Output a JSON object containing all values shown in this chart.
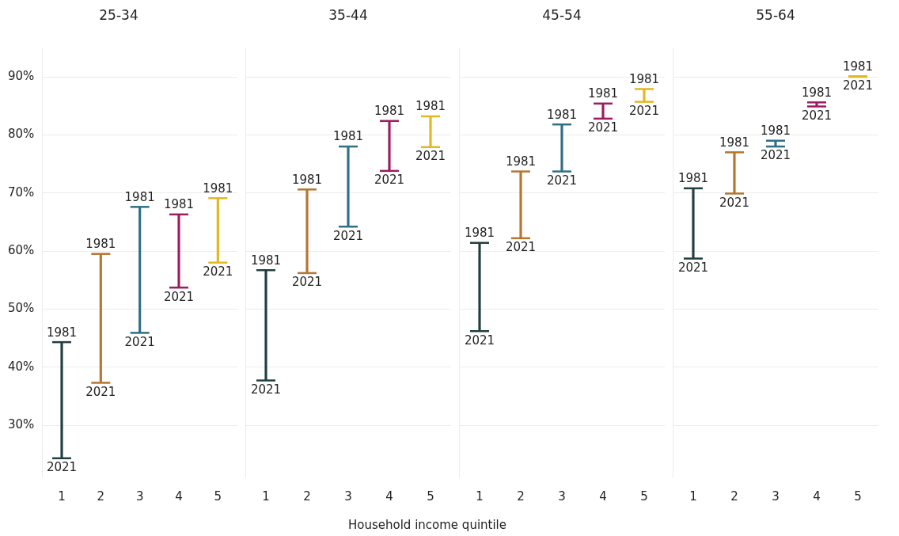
{
  "chart_data": [
    {
      "type": "bar",
      "title": "25-34",
      "categories": [
        "1",
        "2",
        "3",
        "4",
        "5"
      ],
      "base": [
        24.3,
        37.3,
        45.9,
        53.7,
        58.0
      ],
      "values": [
        20.0,
        22.2,
        21.7,
        12.6,
        11.1
      ],
      "colors": [
        "#213e42",
        "#b5762f",
        "#2e6f84",
        "#9b1d63",
        "#e3b81f"
      ],
      "ylim": [
        21,
        95
      ],
      "yticks": [
        {
          "value": 30,
          "label": "30%"
        },
        {
          "value": 40,
          "label": "40%"
        },
        {
          "value": 50,
          "label": "50%"
        },
        {
          "value": 60,
          "label": "60%"
        },
        {
          "value": 70,
          "label": "70%"
        },
        {
          "value": 80,
          "label": "80%"
        },
        {
          "value": 90,
          "label": "90%"
        }
      ],
      "grid": "y",
      "legend": false,
      "annotations": [
        {
          "text": "1981",
          "x": "1",
          "y": 44.3
        },
        {
          "text": "2021",
          "x": "1",
          "y": 24.3
        },
        {
          "text": "1981",
          "x": "2",
          "y": 59.5
        },
        {
          "text": "2021",
          "x": "2",
          "y": 37.3
        },
        {
          "text": "1981",
          "x": "3",
          "y": 67.6
        },
        {
          "text": "2021",
          "x": "3",
          "y": 45.9
        },
        {
          "text": "1981",
          "x": "4",
          "y": 66.3
        },
        {
          "text": "2021",
          "x": "4",
          "y": 53.7
        },
        {
          "text": "1981",
          "x": "5",
          "y": 69.1
        },
        {
          "text": "2021",
          "x": "5",
          "y": 58.0
        }
      ]
    },
    {
      "type": "bar",
      "title": "35-44",
      "xlabel": "Household income quintile",
      "categories": [
        "1",
        "2",
        "3",
        "4",
        "5"
      ],
      "base": [
        37.7,
        56.2,
        64.2,
        73.8,
        77.9
      ],
      "values": [
        19.0,
        14.4,
        13.8,
        8.6,
        5.3
      ],
      "colors": [
        "#213e42",
        "#b5762f",
        "#2e6f84",
        "#9b1d63",
        "#e3b81f"
      ],
      "ylim": [
        21,
        95
      ],
      "yticks": [
        30,
        40,
        50,
        60,
        70,
        80,
        90
      ],
      "grid": "y",
      "legend": false,
      "tick_labels": "x",
      "annotations": [
        {
          "text": "1981",
          "x": "1",
          "y": 56.7
        },
        {
          "text": "2021",
          "x": "1",
          "y": 37.7
        },
        {
          "text": "1981",
          "x": "2",
          "y": 70.6
        },
        {
          "text": "2021",
          "x": "2",
          "y": 56.2
        },
        {
          "text": "1981",
          "x": "3",
          "y": 78.0
        },
        {
          "text": "2021",
          "x": "3",
          "y": 64.2
        },
        {
          "text": "1981",
          "x": "4",
          "y": 82.4
        },
        {
          "text": "2021",
          "x": "4",
          "y": 73.8
        },
        {
          "text": "1981",
          "x": "5",
          "y": 83.2
        },
        {
          "text": "2021",
          "x": "5",
          "y": 77.9
        }
      ]
    },
    {
      "type": "bar",
      "title": "45-54",
      "categories": [
        "1",
        "2",
        "3",
        "4",
        "5"
      ],
      "base": [
        46.2,
        62.2,
        73.7,
        82.8,
        85.7
      ],
      "values": [
        15.2,
        11.5,
        8.1,
        2.6,
        2.2
      ],
      "colors": [
        "#213e42",
        "#b5762f",
        "#2e6f84",
        "#9b1d63",
        "#e3b81f"
      ],
      "ylim": [
        21,
        95
      ],
      "yticks": [
        30,
        40,
        50,
        60,
        70,
        80,
        90
      ],
      "grid": "y",
      "legend": false,
      "tick_labels": "x",
      "annotations": [
        {
          "text": "1981",
          "x": "1",
          "y": 61.4
        },
        {
          "text": "2021",
          "x": "1",
          "y": 46.2
        },
        {
          "text": "1981",
          "x": "2",
          "y": 73.7
        },
        {
          "text": "2021",
          "x": "2",
          "y": 62.2
        },
        {
          "text": "1981",
          "x": "3",
          "y": 81.8
        },
        {
          "text": "2021",
          "x": "3",
          "y": 73.7
        },
        {
          "text": "1981",
          "x": "4",
          "y": 85.4
        },
        {
          "text": "2021",
          "x": "4",
          "y": 82.8
        },
        {
          "text": "1981",
          "x": "5",
          "y": 87.9
        },
        {
          "text": "2021",
          "x": "5",
          "y": 85.7
        }
      ]
    },
    {
      "type": "bar",
      "title": "55-64",
      "categories": [
        "1",
        "2",
        "3",
        "4",
        "5"
      ],
      "base": [
        58.7,
        69.9,
        78.0,
        84.9,
        90.0
      ],
      "values": [
        12.1,
        7.1,
        1.0,
        0.7,
        0.1
      ],
      "colors": [
        "#213e42",
        "#b5762f",
        "#2e6f84",
        "#9b1d63",
        "#e3b81f"
      ],
      "ylim": [
        21,
        95
      ],
      "yticks": [
        30,
        40,
        50,
        60,
        70,
        80,
        90
      ],
      "grid": "y",
      "legend": false,
      "tick_labels": "x",
      "annotations": [
        {
          "text": "1981",
          "x": "1",
          "y": 70.8
        },
        {
          "text": "2021",
          "x": "1",
          "y": 58.7
        },
        {
          "text": "1981",
          "x": "2",
          "y": 77.0
        },
        {
          "text": "2021",
          "x": "2",
          "y": 69.9
        },
        {
          "text": "1981",
          "x": "3",
          "y": 79.0
        },
        {
          "text": "2021",
          "x": "3",
          "y": 78.0
        },
        {
          "text": "1981",
          "x": "4",
          "y": 85.6
        },
        {
          "text": "2021",
          "x": "4",
          "y": 84.9
        },
        {
          "text": "1981",
          "x": "5",
          "y": 90.1
        },
        {
          "text": "2021",
          "x": "5",
          "y": 90.0
        }
      ]
    }
  ]
}
